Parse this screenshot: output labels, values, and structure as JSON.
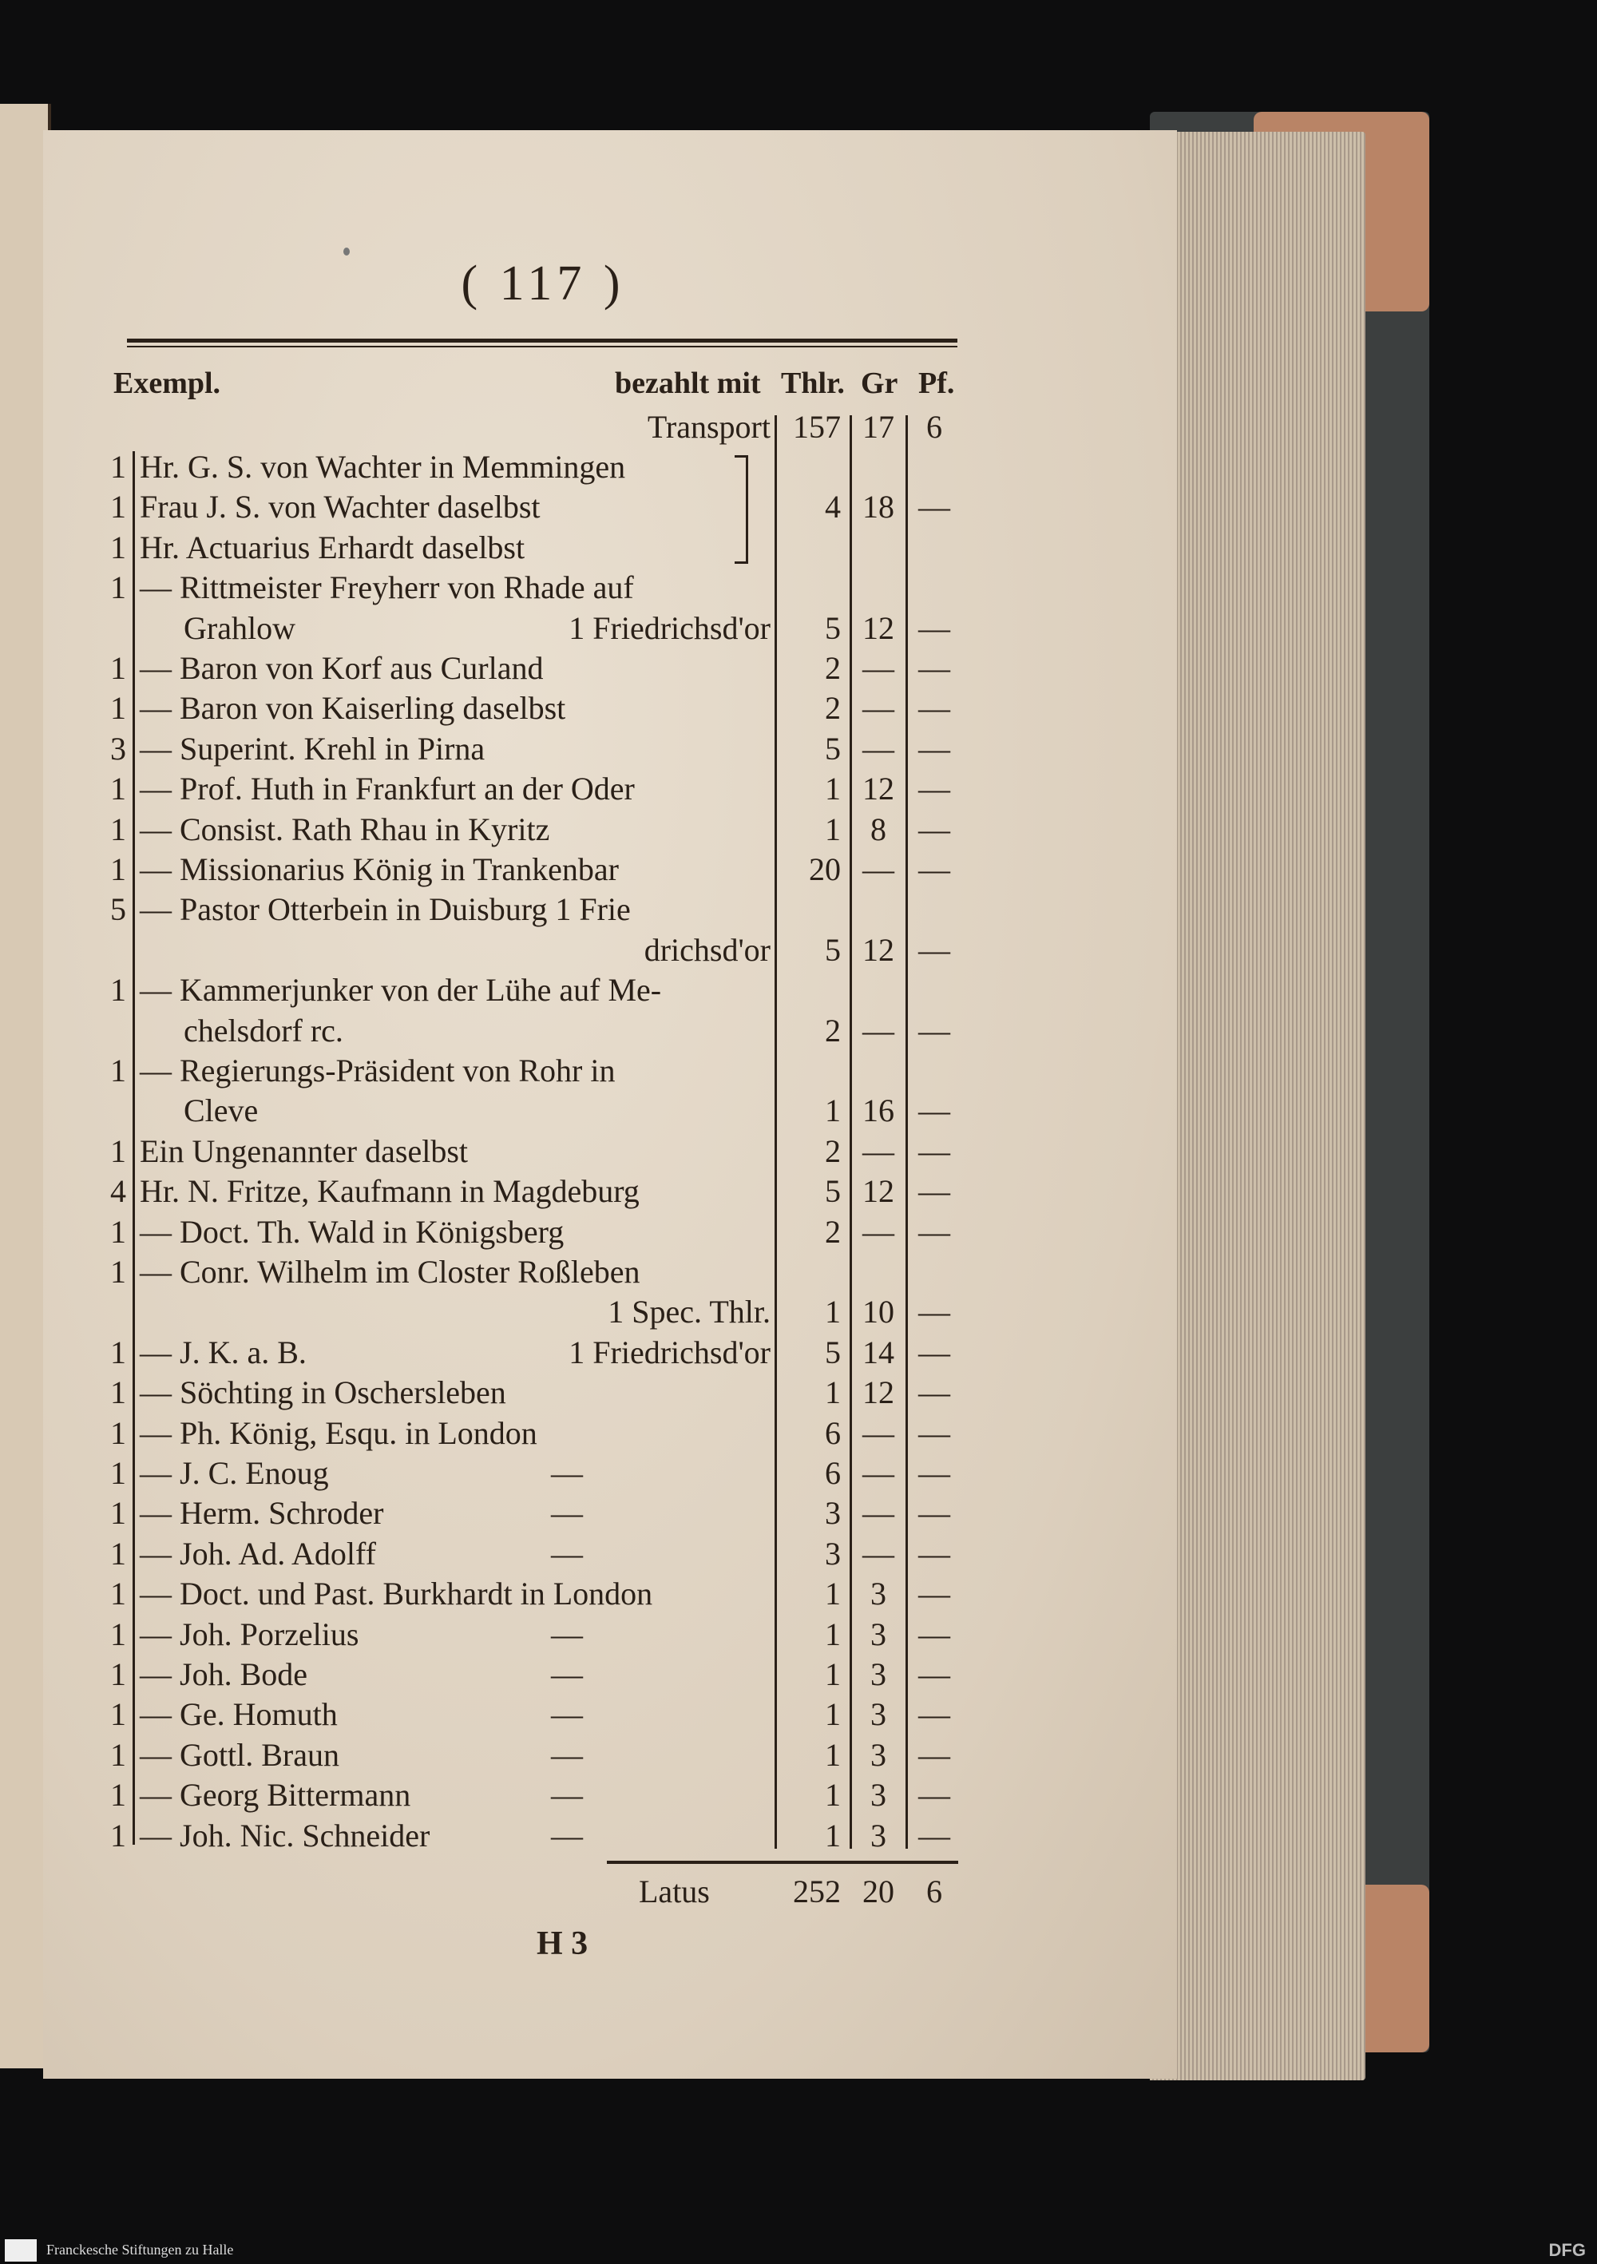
{
  "page": {
    "number": "( 117 )",
    "signature": "H 3",
    "header": {
      "exempl": "Exempl.",
      "paid_with": "bezahlt mit",
      "thlr": "Thlr.",
      "gr": "Gr",
      "pf": "Pf."
    },
    "transport": {
      "label": "Transport",
      "thlr": "157",
      "gr": "17",
      "pf": "6"
    },
    "rows": [
      {
        "count": "1",
        "text": "Hr. G. S. von Wachter in Memmingen",
        "thlr": "",
        "gr": "",
        "pf": ""
      },
      {
        "count": "1",
        "text": "Frau J. S. von Wachter daselbst",
        "thlr": "4",
        "gr": "18",
        "pf": "—"
      },
      {
        "count": "1",
        "text": "Hr. Actuarius Erhardt daselbst",
        "thlr": "",
        "gr": "",
        "pf": ""
      },
      {
        "count": "1",
        "text": "— Rittmeister Freyherr von Rhade auf",
        "thlr": "",
        "gr": "",
        "pf": ""
      },
      {
        "count": "",
        "text": "Grahlow",
        "sub": "1 Friedrichsd'or",
        "indent": true,
        "thlr": "5",
        "gr": "12",
        "pf": "—"
      },
      {
        "count": "1",
        "text": "— Baron von Korf aus Curland",
        "thlr": "2",
        "gr": "—",
        "pf": "—"
      },
      {
        "count": "1",
        "text": "— Baron von Kaiserling daselbst",
        "thlr": "2",
        "gr": "—",
        "pf": "—"
      },
      {
        "count": "3",
        "text": "— Superint. Krehl in Pirna",
        "thlr": "5",
        "gr": "—",
        "pf": "—"
      },
      {
        "count": "1",
        "text": "— Prof. Huth in Frankfurt an der Oder",
        "thlr": "1",
        "gr": "12",
        "pf": "—"
      },
      {
        "count": "1",
        "text": "— Consist. Rath Rhau in Kyritz",
        "thlr": "1",
        "gr": "8",
        "pf": "—"
      },
      {
        "count": "1",
        "text": "— Missionarius König in Trankenbar",
        "thlr": "20",
        "gr": "—",
        "pf": "—"
      },
      {
        "count": "5",
        "text": "— Pastor Otterbein in Duisburg 1 Frie",
        "thlr": "",
        "gr": "",
        "pf": ""
      },
      {
        "count": "",
        "text": "",
        "sub": "drichsd'or",
        "thlr": "5",
        "gr": "12",
        "pf": "—"
      },
      {
        "count": "1",
        "text": "— Kammerjunker von der Lühe auf Me-",
        "thlr": "",
        "gr": "",
        "pf": ""
      },
      {
        "count": "",
        "text": "chelsdorf rc.",
        "indent": true,
        "thlr": "2",
        "gr": "—",
        "pf": "—"
      },
      {
        "count": "1",
        "text": "— Regierungs-Präsident von Rohr in",
        "thlr": "",
        "gr": "",
        "pf": ""
      },
      {
        "count": "",
        "text": "Cleve",
        "indent": true,
        "thlr": "1",
        "gr": "16",
        "pf": "—"
      },
      {
        "count": "1",
        "text": "Ein Ungenannter daselbst",
        "thlr": "2",
        "gr": "—",
        "pf": "—"
      },
      {
        "count": "4",
        "text": "Hr. N. Fritze, Kaufmann in Magdeburg",
        "thlr": "5",
        "gr": "12",
        "pf": "—"
      },
      {
        "count": "1",
        "text": "— Doct. Th. Wald in Königsberg",
        "thlr": "2",
        "gr": "—",
        "pf": "—"
      },
      {
        "count": "1",
        "text": "— Conr. Wilhelm im Closter Roßleben",
        "thlr": "",
        "gr": "",
        "pf": ""
      },
      {
        "count": "",
        "text": "",
        "sub": "1 Spec. Thlr.",
        "thlr": "1",
        "gr": "10",
        "pf": "—"
      },
      {
        "count": "1",
        "text": "— J. K. a. B.",
        "sub": "1 Friedrichsd'or",
        "thlr": "5",
        "gr": "14",
        "pf": "—"
      },
      {
        "count": "1",
        "text": "— Söchting in Oschersleben",
        "thlr": "1",
        "gr": "12",
        "pf": "—"
      },
      {
        "count": "1",
        "text": "— Ph. König, Esqu. in London",
        "thlr": "6",
        "gr": "—",
        "pf": "—"
      },
      {
        "count": "1",
        "text": "— J. C. Enoug",
        "mid": "—",
        "thlr": "6",
        "gr": "—",
        "pf": "—"
      },
      {
        "count": "1",
        "text": "— Herm. Schroder",
        "mid": "—",
        "thlr": "3",
        "gr": "—",
        "pf": "—"
      },
      {
        "count": "1",
        "text": "— Joh. Ad. Adolff",
        "mid": "—",
        "thlr": "3",
        "gr": "—",
        "pf": "—"
      },
      {
        "count": "1",
        "text": "— Doct. und Past. Burkhardt in London",
        "thlr": "1",
        "gr": "3",
        "pf": "—"
      },
      {
        "count": "1",
        "text": "— Joh. Porzelius",
        "mid": "—",
        "thlr": "1",
        "gr": "3",
        "pf": "—"
      },
      {
        "count": "1",
        "text": "— Joh. Bode",
        "mid": "—",
        "thlr": "1",
        "gr": "3",
        "pf": "—"
      },
      {
        "count": "1",
        "text": "— Ge. Homuth",
        "mid": "—",
        "thlr": "1",
        "gr": "3",
        "pf": "—"
      },
      {
        "count": "1",
        "text": "— Gottl. Braun",
        "mid": "—",
        "thlr": "1",
        "gr": "3",
        "pf": "—"
      },
      {
        "count": "1",
        "text": "— Georg Bittermann",
        "mid": "—",
        "thlr": "1",
        "gr": "3",
        "pf": "—"
      },
      {
        "count": "1",
        "text": "— Joh. Nic. Schneider",
        "mid": "—",
        "thlr": "1",
        "gr": "3",
        "pf": "—"
      }
    ],
    "latus": {
      "label": "Latus",
      "thlr": "252",
      "gr": "20",
      "pf": "6"
    }
  },
  "footer": {
    "institution": "Franckesche Stiftungen zu Halle",
    "funder": "DFG"
  }
}
